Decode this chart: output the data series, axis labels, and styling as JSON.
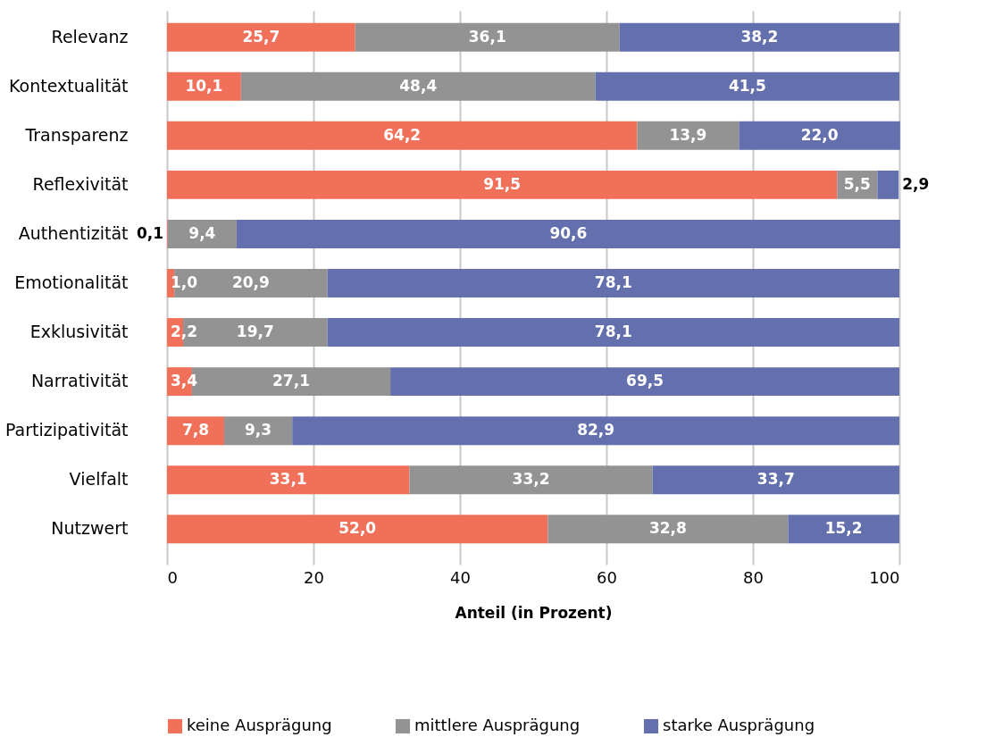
{
  "chart_data": {
    "type": "bar",
    "orientation": "horizontal",
    "stacked": true,
    "xlabel": "Anteil (in Prozent)",
    "categories": [
      "Relevanz",
      "Kontextualität",
      "Transparenz",
      "Reflexivität",
      "Authentizität",
      "Emotionalität",
      "Exklusivität",
      "Narrativität",
      "Partizipativität",
      "Vielfalt",
      "Nutzwert"
    ],
    "series": [
      {
        "name": "keine Ausprägung",
        "color": "#f07059",
        "values": [
          25.7,
          10.1,
          64.2,
          91.5,
          0.1,
          1.0,
          2.2,
          3.4,
          7.8,
          33.1,
          52.0
        ],
        "value_labels": [
          "25,7",
          "10,1",
          "64,2",
          "91,5",
          "0,1",
          "1,0",
          "2,2",
          "3,4",
          "7,8",
          "33,1",
          "52,0"
        ]
      },
      {
        "name": "mittlere Ausprägung",
        "color": "#939393",
        "values": [
          36.1,
          48.4,
          13.9,
          5.5,
          9.4,
          20.9,
          19.7,
          27.1,
          9.3,
          33.2,
          32.8
        ],
        "value_labels": [
          "36,1",
          "48,4",
          "13,9",
          "5,5",
          "9,4",
          "20,9",
          "19,7",
          "27,1",
          "9,3",
          "33,2",
          "32,8"
        ]
      },
      {
        "name": "starke Ausprägung",
        "color": "#6470ad",
        "values": [
          38.2,
          41.5,
          22.0,
          2.9,
          90.6,
          78.1,
          78.1,
          69.5,
          82.9,
          33.7,
          15.2
        ],
        "value_labels": [
          "38,2",
          "41,5",
          "22,0",
          "2,9",
          "90,6",
          "78,1",
          "78,1",
          "69,5",
          "82,9",
          "33,7",
          "15,2"
        ]
      }
    ],
    "xlim": [
      0,
      100
    ],
    "xticks": [
      0,
      20,
      40,
      60,
      80,
      100
    ],
    "grid": "x",
    "legend": "bottom"
  }
}
